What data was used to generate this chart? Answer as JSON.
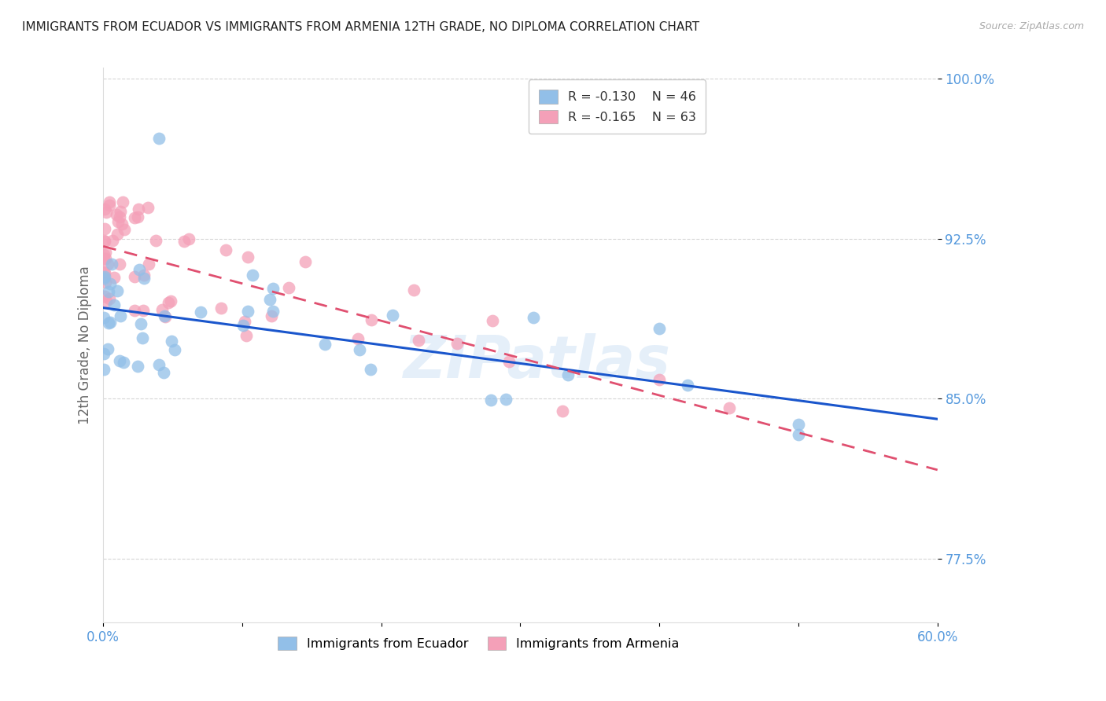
{
  "title": "IMMIGRANTS FROM ECUADOR VS IMMIGRANTS FROM ARMENIA 12TH GRADE, NO DIPLOMA CORRELATION CHART",
  "source": "Source: ZipAtlas.com",
  "ylabel": "12th Grade, No Diploma",
  "xlim": [
    0.0,
    0.6
  ],
  "ylim": [
    0.745,
    1.005
  ],
  "xticks": [
    0.0,
    0.1,
    0.2,
    0.3,
    0.4,
    0.5,
    0.6
  ],
  "xticklabels": [
    "0.0%",
    "",
    "",
    "",
    "",
    "",
    "60.0%"
  ],
  "yticks": [
    0.775,
    0.85,
    0.925,
    1.0
  ],
  "yticklabels": [
    "77.5%",
    "85.0%",
    "92.5%",
    "100.0%"
  ],
  "ecuador": {
    "label": "Immigrants from Ecuador",
    "R": -0.13,
    "N": 46,
    "color": "#92bfe8",
    "trend_color": "#1a56cc",
    "trend_style": "solid",
    "x": [
      0.002,
      0.003,
      0.004,
      0.006,
      0.008,
      0.009,
      0.01,
      0.011,
      0.012,
      0.013,
      0.015,
      0.016,
      0.017,
      0.019,
      0.02,
      0.022,
      0.025,
      0.027,
      0.03,
      0.032,
      0.035,
      0.038,
      0.04,
      0.042,
      0.05,
      0.055,
      0.06,
      0.065,
      0.07,
      0.08,
      0.09,
      0.1,
      0.11,
      0.13,
      0.15,
      0.17,
      0.19,
      0.22,
      0.27,
      0.33,
      0.38,
      0.42,
      0.5,
      0.001,
      0.001,
      0.001
    ],
    "y": [
      0.97,
      0.875,
      0.893,
      0.883,
      0.873,
      0.875,
      0.885,
      0.875,
      0.877,
      0.88,
      0.883,
      0.877,
      0.875,
      0.882,
      0.873,
      0.875,
      0.876,
      0.872,
      0.875,
      0.873,
      0.874,
      0.872,
      0.875,
      0.877,
      0.871,
      0.87,
      0.868,
      0.87,
      0.872,
      0.869,
      0.87,
      0.868,
      0.867,
      0.865,
      0.863,
      0.862,
      0.862,
      0.86,
      0.858,
      0.856,
      0.853,
      0.857,
      0.843,
      0.873,
      0.87,
      0.865
    ]
  },
  "armenia": {
    "label": "Immigrants from Armenia",
    "R": -0.165,
    "N": 63,
    "color": "#f4a0b8",
    "trend_color": "#e05070",
    "trend_style": "dashed",
    "x": [
      0.001,
      0.001,
      0.001,
      0.002,
      0.002,
      0.002,
      0.003,
      0.003,
      0.003,
      0.004,
      0.004,
      0.005,
      0.005,
      0.006,
      0.006,
      0.007,
      0.007,
      0.008,
      0.009,
      0.01,
      0.011,
      0.012,
      0.013,
      0.014,
      0.015,
      0.016,
      0.017,
      0.018,
      0.019,
      0.02,
      0.022,
      0.024,
      0.025,
      0.027,
      0.03,
      0.032,
      0.035,
      0.038,
      0.04,
      0.045,
      0.05,
      0.055,
      0.06,
      0.065,
      0.07,
      0.08,
      0.09,
      0.1,
      0.11,
      0.12,
      0.13,
      0.14,
      0.16,
      0.18,
      0.21,
      0.25,
      0.3,
      0.35,
      0.4,
      0.001,
      0.002,
      0.003,
      0.004
    ],
    "y": [
      0.968,
      0.963,
      0.957,
      0.96,
      0.955,
      0.952,
      0.958,
      0.95,
      0.947,
      0.96,
      0.945,
      0.952,
      0.96,
      0.95,
      0.94,
      0.948,
      0.942,
      0.938,
      0.945,
      0.94,
      0.935,
      0.942,
      0.937,
      0.933,
      0.94,
      0.932,
      0.935,
      0.93,
      0.928,
      0.933,
      0.928,
      0.925,
      0.93,
      0.922,
      0.92,
      0.918,
      0.915,
      0.912,
      0.91,
      0.905,
      0.9,
      0.895,
      0.89,
      0.888,
      0.885,
      0.88,
      0.875,
      0.872,
      0.868,
      0.865,
      0.862,
      0.858,
      0.853,
      0.848,
      0.843,
      0.838,
      0.833,
      0.83,
      0.825,
      0.965,
      0.96,
      0.955,
      0.95
    ]
  },
  "watermark": "ZIPatlas",
  "background_color": "#ffffff",
  "grid_color": "#cccccc",
  "title_fontsize": 11,
  "axis_tick_color": "#5599dd",
  "ylabel_color": "#666666"
}
